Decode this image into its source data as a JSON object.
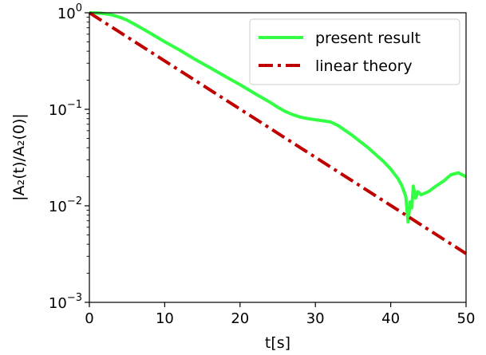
{
  "chart_data": {
    "type": "line",
    "xlabel": "t[s]",
    "ylabel": "|A₂(t)/A₂(0)|",
    "xlim": [
      0,
      50
    ],
    "ylim": [
      0.001,
      1
    ],
    "yscale": "log",
    "grid": false,
    "legend_position": "top-right",
    "x_ticks": [
      {
        "value": 0,
        "label": "0"
      },
      {
        "value": 10,
        "label": "10"
      },
      {
        "value": 20,
        "label": "20"
      },
      {
        "value": 30,
        "label": "30"
      },
      {
        "value": 40,
        "label": "40"
      },
      {
        "value": 50,
        "label": "50"
      }
    ],
    "y_ticks": [
      {
        "value": 1,
        "base": "10",
        "exp": "0"
      },
      {
        "value": 0.1,
        "base": "10",
        "exp": "−1"
      },
      {
        "value": 0.01,
        "base": "10",
        "exp": "−2"
      },
      {
        "value": 0.001,
        "base": "10",
        "exp": "−3"
      }
    ],
    "series": [
      {
        "name": "present result",
        "color": "#33ff44",
        "style": "solid",
        "x": [
          0,
          1,
          2,
          3,
          4,
          5,
          6,
          8,
          10,
          12,
          14,
          16,
          18,
          20,
          22,
          24,
          25,
          26,
          27,
          28,
          29,
          30,
          31,
          32,
          33,
          34,
          35,
          36,
          37,
          38,
          39,
          40,
          41,
          41.5,
          42,
          42.3,
          42.6,
          42.8,
          43,
          43.3,
          43.6,
          44,
          45,
          46,
          47,
          48,
          49,
          50
        ],
        "y": [
          1.0,
          0.995,
          0.98,
          0.95,
          0.9,
          0.84,
          0.76,
          0.62,
          0.5,
          0.41,
          0.33,
          0.27,
          0.22,
          0.18,
          0.145,
          0.118,
          0.105,
          0.095,
          0.088,
          0.083,
          0.08,
          0.078,
          0.076,
          0.074,
          0.068,
          0.06,
          0.053,
          0.046,
          0.04,
          0.034,
          0.029,
          0.024,
          0.019,
          0.016,
          0.0125,
          0.0068,
          0.011,
          0.0095,
          0.016,
          0.012,
          0.014,
          0.013,
          0.014,
          0.016,
          0.018,
          0.021,
          0.022,
          0.02
        ]
      },
      {
        "name": "linear theory",
        "color": "#c00000",
        "style": "dashdot",
        "x": [
          0,
          50
        ],
        "y": [
          1.0,
          0.0032
        ]
      }
    ]
  }
}
